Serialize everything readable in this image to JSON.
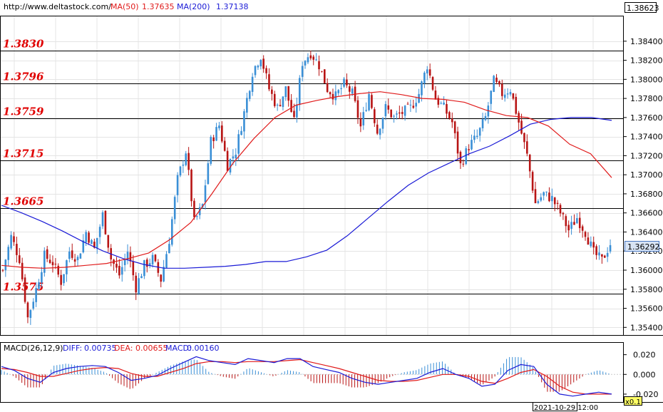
{
  "header": {
    "url": "http://www.deltastock.com/",
    "ma50_label": "MA(50)",
    "ma50_value": "1.37635",
    "ma200_label": "MA(200)",
    "ma200_value": "1.37138",
    "top_price": "1.38623"
  },
  "current_price": "1.36292",
  "macd_header": {
    "label": "MACD(26,12,9)",
    "diff_label": "DIFF:",
    "diff_value": "0.00735",
    "dea_label": "DEA:",
    "dea_value": "0.00655",
    "macd_label": "MACD:",
    "macd_value": "0.00160"
  },
  "time_label": "2021-10-29 12:00",
  "scale_label": "x0.1",
  "colors": {
    "bull": "#3a8fd6",
    "bear": "#b81414",
    "ma50": "#e01a1a",
    "ma200": "#1a1ad6",
    "level_text": "#e00000"
  },
  "chart_data": {
    "type": "candlestick",
    "y_ticks": [
      "1.38400",
      "1.38200",
      "1.38000",
      "1.37800",
      "1.37600",
      "1.37400",
      "1.37200",
      "1.37000",
      "1.36800",
      "1.36600",
      "1.36400",
      "1.36200",
      "1.36000",
      "1.35800",
      "1.35600",
      "1.35400"
    ],
    "ylim": [
      1.3532,
      1.3866
    ],
    "levels": [
      "1.3830",
      "1.3796",
      "1.3759",
      "1.3715",
      "1.3665",
      "1.3575"
    ],
    "macd_ticks": [
      "0.020",
      "0.000",
      "-0.020"
    ],
    "macd_ylim": [
      -0.028,
      0.032
    ],
    "close_path": [
      1.36,
      1.3635,
      1.3612,
      1.355,
      1.358,
      1.3615,
      1.3608,
      1.3588,
      1.362,
      1.3612,
      1.364,
      1.3622,
      1.3658,
      1.3612,
      1.3595,
      1.362,
      1.3582,
      1.3605,
      1.3612,
      1.359,
      1.3632,
      1.3695,
      1.3725,
      1.365,
      1.3668,
      1.3735,
      1.3752,
      1.371,
      1.3725,
      1.3765,
      1.3808,
      1.3825,
      1.379,
      1.377,
      1.379,
      1.3755,
      1.3818,
      1.3828,
      1.3815,
      1.379,
      1.3782,
      1.3795,
      1.3785,
      1.375,
      1.3785,
      1.3745,
      1.377,
      1.376,
      1.3765,
      1.377,
      1.3785,
      1.3815,
      1.378,
      1.377,
      1.3755,
      1.371,
      1.373,
      1.374,
      1.376,
      1.3798,
      1.3785,
      1.379,
      1.3755,
      1.372,
      1.367,
      1.368,
      1.3675,
      1.366,
      1.3642,
      1.3655,
      1.364,
      1.3618,
      1.361,
      1.3628
    ],
    "ma50_path": [
      1.3605,
      1.3603,
      1.3602,
      1.3603,
      1.3605,
      1.3607,
      1.3612,
      1.3618,
      1.3632,
      1.365,
      1.368,
      1.3712,
      1.3738,
      1.376,
      1.3773,
      1.3778,
      1.3782,
      1.3785,
      1.3787,
      1.3784,
      1.378,
      1.3779,
      1.3776,
      1.3768,
      1.3762,
      1.376,
      1.3751,
      1.3732,
      1.3722,
      1.3697
    ],
    "ma200_path": [
      1.3668,
      1.366,
      1.3651,
      1.3641,
      1.363,
      1.362,
      1.3612,
      1.3606,
      1.3602,
      1.3602,
      1.3603,
      1.3604,
      1.3606,
      1.3609,
      1.3609,
      1.3614,
      1.3621,
      1.3636,
      1.3654,
      1.3672,
      1.3689,
      1.3702,
      1.3712,
      1.3722,
      1.373,
      1.3741,
      1.3753,
      1.3758,
      1.376,
      1.376,
      1.3757
    ],
    "macd_diff_path": [
      0.008,
      0.004,
      -0.004,
      -0.008,
      0.002,
      0.006,
      0.008,
      0.009,
      0.008,
      0.002,
      -0.006,
      -0.004,
      -0.001,
      0.006,
      0.012,
      0.018,
      0.014,
      0.012,
      0.01,
      0.016,
      0.014,
      0.012,
      0.016,
      0.016,
      0.008,
      0.005,
      0.002,
      -0.004,
      -0.008,
      -0.01,
      -0.008,
      -0.006,
      -0.004,
      0.002,
      0.006,
      0.0,
      -0.004,
      -0.012,
      -0.01,
      0.004,
      0.01,
      0.008,
      -0.01,
      -0.02,
      -0.022,
      -0.02,
      -0.018,
      -0.02
    ],
    "macd_dea_path": [
      0.006,
      0.005,
      0.002,
      -0.002,
      -0.002,
      0.001,
      0.004,
      0.006,
      0.007,
      0.006,
      0.001,
      -0.002,
      -0.002,
      0.002,
      0.006,
      0.011,
      0.013,
      0.013,
      0.012,
      0.013,
      0.013,
      0.013,
      0.014,
      0.015,
      0.012,
      0.009,
      0.006,
      0.002,
      -0.002,
      -0.006,
      -0.007,
      -0.007,
      -0.006,
      -0.003,
      0.0,
      0.0,
      -0.002,
      -0.007,
      -0.009,
      -0.004,
      0.002,
      0.005,
      -0.002,
      -0.012,
      -0.018,
      -0.02,
      -0.02,
      -0.02
    ]
  }
}
